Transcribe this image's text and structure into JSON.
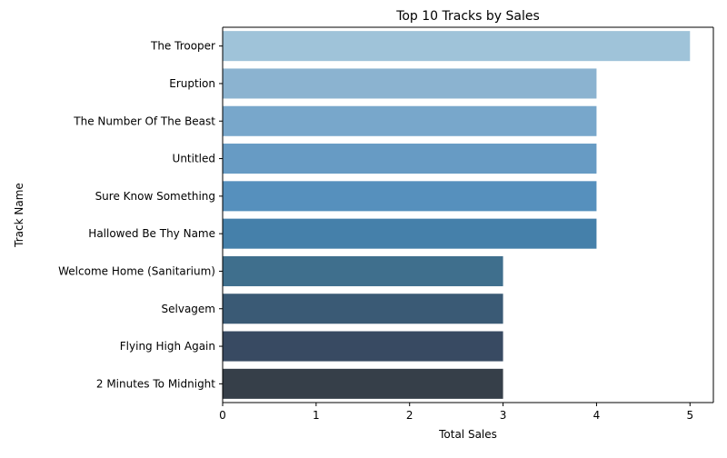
{
  "chart_data": {
    "type": "bar",
    "orientation": "horizontal",
    "title": "Top 10 Tracks by Sales",
    "xlabel": "Total Sales",
    "ylabel": "Track Name",
    "xlim": [
      0,
      5.25
    ],
    "xticks": [
      0,
      1,
      2,
      3,
      4,
      5
    ],
    "grid": false,
    "legend": "none",
    "categories": [
      "The Trooper",
      "Eruption",
      "The Number Of The Beast",
      "Untitled",
      "Sure Know Something",
      "Hallowed Be Thy Name",
      "Welcome Home (Sanitarium)",
      "Selvagem",
      "Flying High Again",
      "2 Minutes To Midnight"
    ],
    "values": [
      5,
      4,
      4,
      4,
      4,
      4,
      3,
      3,
      3,
      3
    ],
    "colors": [
      "#9fc3d9",
      "#8bb3d0",
      "#78a7cb",
      "#679bc4",
      "#5690bd",
      "#4580aa",
      "#3f6f8d",
      "#3a5a75",
      "#384a62",
      "#363f49"
    ]
  }
}
